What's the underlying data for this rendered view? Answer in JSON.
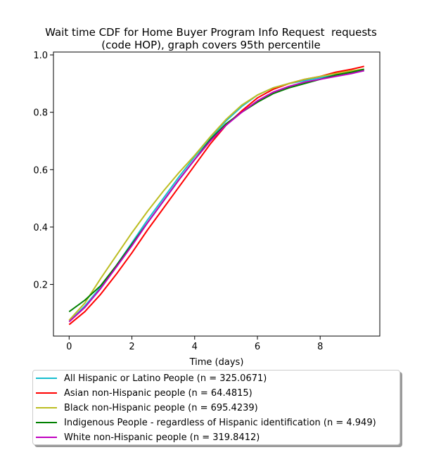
{
  "chart_data": {
    "type": "line",
    "title_lines": [
      "Wait time CDF for Home Buyer Program Info Request  requests",
      "(code HOP), graph covers 95th percentile"
    ],
    "xlabel": "Time (days)",
    "ylabel": "",
    "xlim": [
      -0.5,
      9.9
    ],
    "ylim": [
      0.02,
      1.01
    ],
    "xticks": [
      0,
      2,
      4,
      6,
      8
    ],
    "yticks": [
      0.2,
      0.4,
      0.6,
      0.8,
      1.0
    ],
    "xtick_labels": [
      "0",
      "2",
      "4",
      "6",
      "8"
    ],
    "ytick_labels": [
      "0.2",
      "0.4",
      "0.6",
      "0.8",
      "1.0"
    ],
    "grid": false,
    "legend_position": "below",
    "x": [
      0,
      0.5,
      1,
      1.5,
      2,
      2.5,
      3,
      3.5,
      4,
      4.5,
      5,
      5.5,
      6,
      6.5,
      7,
      7.5,
      8,
      8.5,
      9,
      9.4
    ],
    "series": [
      {
        "name": "All Hispanic or Latino People (n = 325.0671)",
        "color": "#17becf",
        "values": [
          0.07,
          0.125,
          0.19,
          0.265,
          0.345,
          0.425,
          0.5,
          0.575,
          0.645,
          0.71,
          0.77,
          0.82,
          0.86,
          0.885,
          0.9,
          0.91,
          0.92,
          0.93,
          0.94,
          0.945
        ]
      },
      {
        "name": "Asian non-Hispanic people (n = 64.4815)",
        "color": "#ff0000",
        "values": [
          0.06,
          0.105,
          0.165,
          0.235,
          0.31,
          0.39,
          0.465,
          0.54,
          0.615,
          0.69,
          0.755,
          0.805,
          0.85,
          0.88,
          0.9,
          0.915,
          0.925,
          0.94,
          0.95,
          0.96
        ]
      },
      {
        "name": "Black non-Hispanic people (n = 695.4239)",
        "color": "#bcbd22",
        "values": [
          0.075,
          0.135,
          0.22,
          0.3,
          0.38,
          0.455,
          0.525,
          0.59,
          0.65,
          0.715,
          0.775,
          0.825,
          0.86,
          0.885,
          0.9,
          0.915,
          0.925,
          0.935,
          0.945,
          0.95
        ]
      },
      {
        "name": "Indigenous People - regardless of Hispanic identification (n = 4.949)",
        "color": "#008000",
        "values": [
          0.105,
          0.145,
          0.195,
          0.265,
          0.34,
          0.415,
          0.49,
          0.565,
          0.635,
          0.705,
          0.76,
          0.8,
          0.835,
          0.865,
          0.885,
          0.9,
          0.915,
          0.93,
          0.94,
          0.95
        ]
      },
      {
        "name": "White non-Hispanic people (n = 319.8412)",
        "color": "#bf00bf",
        "values": [
          0.07,
          0.12,
          0.185,
          0.26,
          0.335,
          0.415,
          0.49,
          0.565,
          0.635,
          0.7,
          0.755,
          0.8,
          0.84,
          0.87,
          0.89,
          0.905,
          0.915,
          0.925,
          0.935,
          0.945
        ]
      }
    ]
  }
}
